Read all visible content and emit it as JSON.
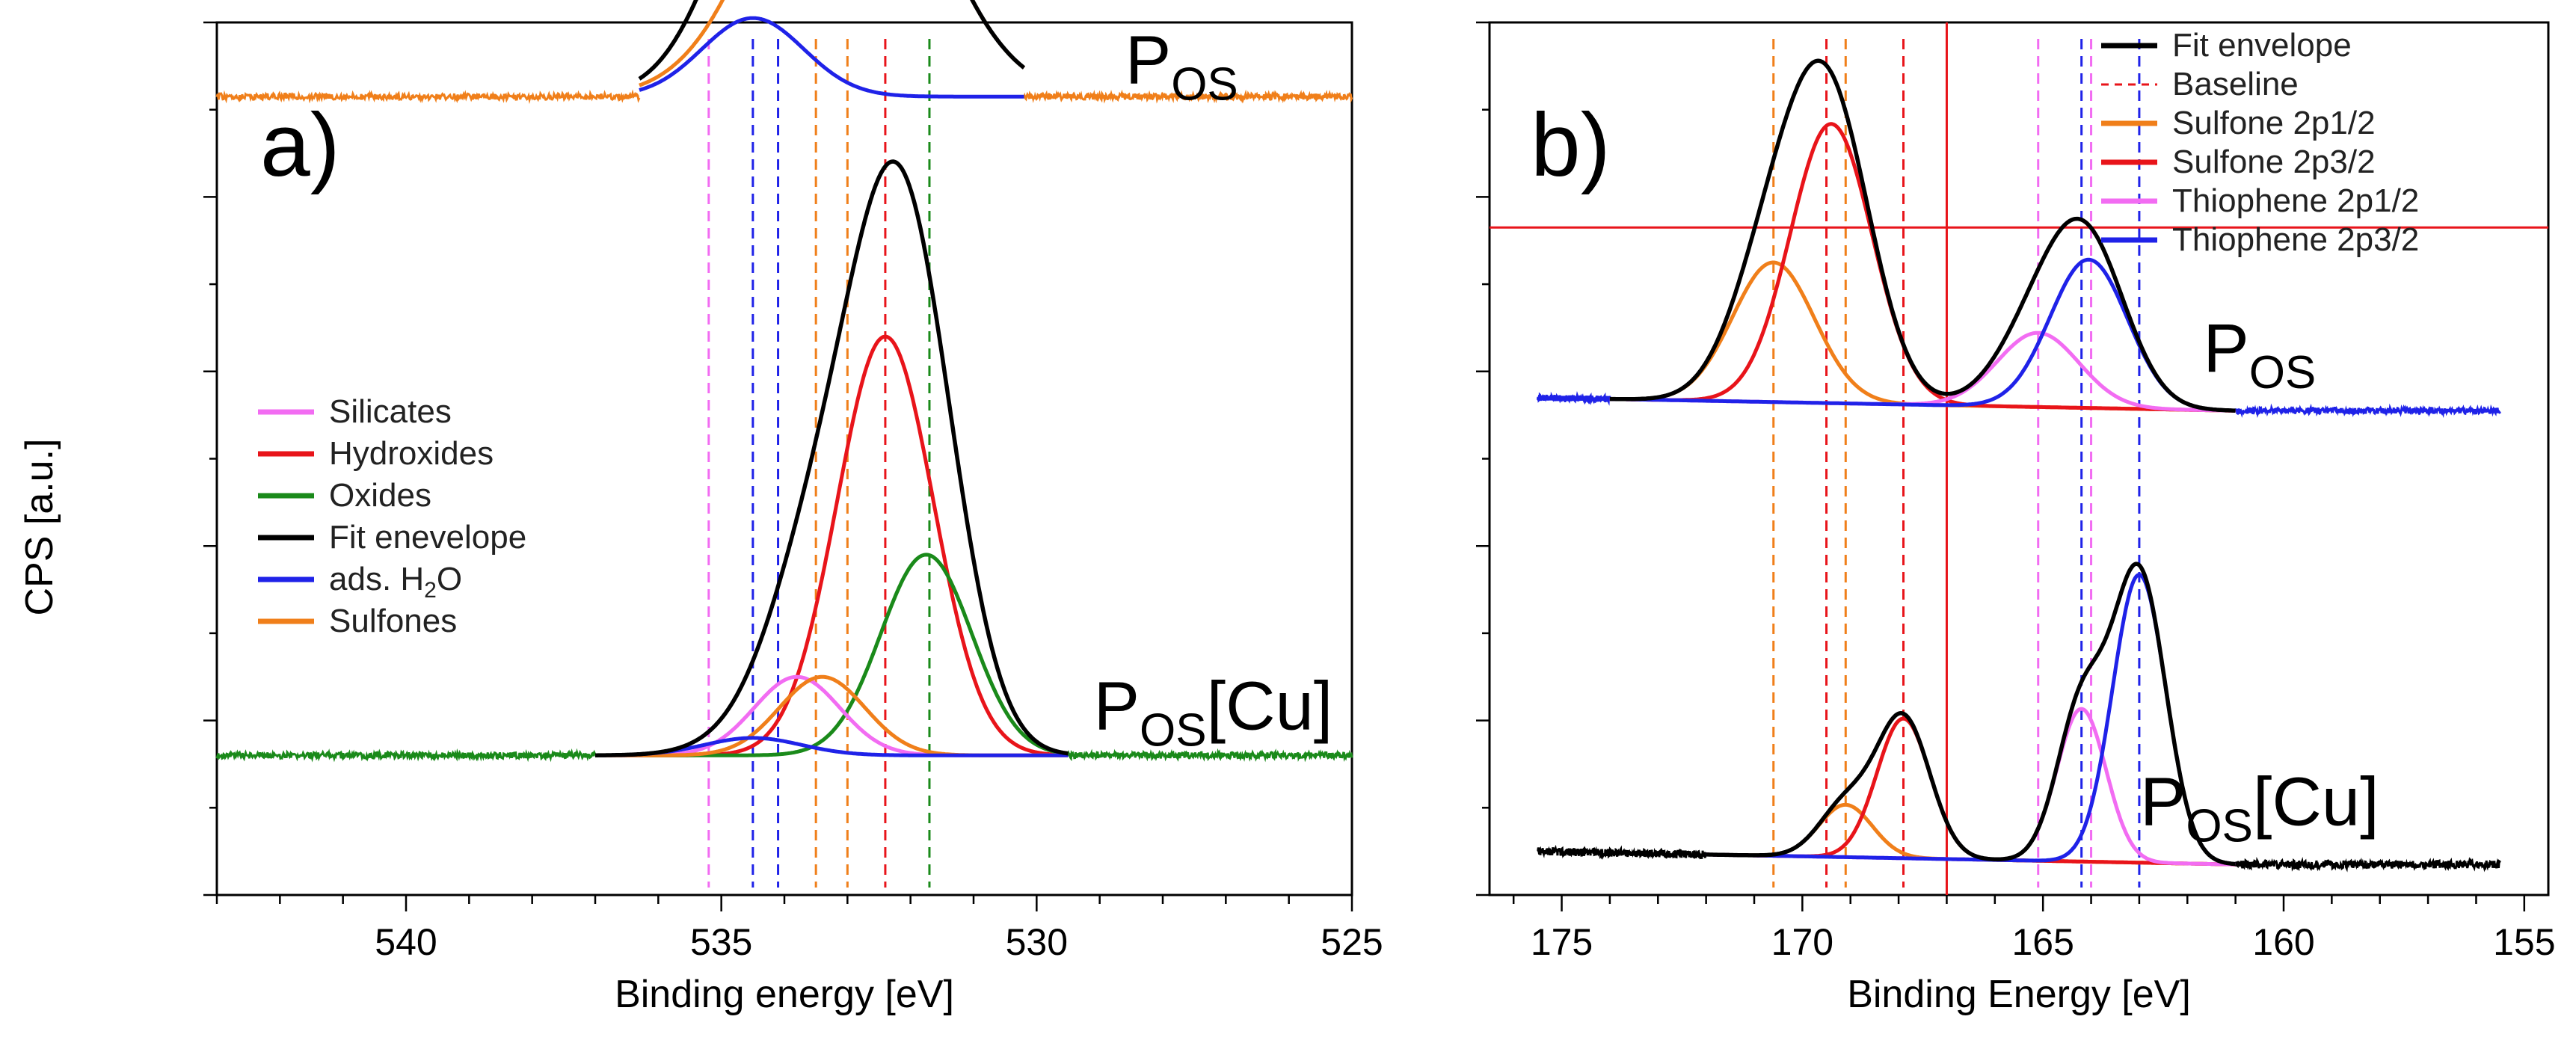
{
  "figure": {
    "ylabel": "CPS [a.u.]",
    "colors": {
      "orange": "#f07f1a",
      "red": "#e8141a",
      "blue": "#1f22e8",
      "magenta": "#f26cf2",
      "green": "#1a8a1a",
      "black": "#000000"
    }
  },
  "chart_data": [
    {
      "type": "line",
      "panel_label": "a)",
      "xlabel": "Binding energy [eV]",
      "ylabel": "CPS [a.u.]",
      "xlim": [
        543,
        525
      ],
      "xticks": [
        540,
        535,
        530,
        525
      ],
      "ylim": [
        0,
        100
      ],
      "legend_position": "center-left",
      "legend": [
        {
          "label": "Silicates",
          "color": "#f26cf2"
        },
        {
          "label": "Hydroxides",
          "color": "#e8141a"
        },
        {
          "label": "Oxides",
          "color": "#1a8a1a"
        },
        {
          "label": "Fit enevelope",
          "color": "#000000"
        },
        {
          "label": "ads. H",
          "sub": "2",
          "label_tail": "O",
          "color": "#1f22e8"
        },
        {
          "label": "Sulfones",
          "color": "#f07f1a"
        }
      ],
      "reference_lines": [
        {
          "x": 535.2,
          "color": "#f26cf2"
        },
        {
          "x": 534.5,
          "color": "#1f22e8"
        },
        {
          "x": 534.1,
          "color": "#1f22e8"
        },
        {
          "x": 533.5,
          "color": "#f07f1a"
        },
        {
          "x": 533.0,
          "color": "#f07f1a"
        },
        {
          "x": 532.4,
          "color": "#e8141a"
        },
        {
          "x": 531.7,
          "color": "#1a8a1a"
        }
      ],
      "spectra": [
        {
          "sample_main": "P",
          "sample_sub": "OS",
          "sample_tail": "",
          "label_x": 527.7,
          "label_y": 93,
          "baseline_color": "#f07f1a",
          "baseline_y": 91.5,
          "noise": 0.35,
          "noise_x": [
            543,
            525
          ],
          "components": [
            {
              "name": "Sulfones",
              "color": "#f07f1a",
              "center": 533.0,
              "fwhm": 3.0,
              "height": 37,
              "x_range": [
                536.3,
                530.2
              ]
            },
            {
              "name": "ads. H2O",
              "color": "#1f22e8",
              "center": 534.5,
              "fwhm": 1.9,
              "height": 9,
              "x_range": [
                536.3,
                530.2
              ]
            }
          ],
          "envelope": {
            "color": "#000000",
            "x_range": [
              536.3,
              530.2
            ]
          }
        },
        {
          "sample_main": "P",
          "sample_sub": "OS",
          "sample_tail": "[Cu]",
          "label_x": 527.2,
          "label_y": 19,
          "baseline_color": "#1a8a1a",
          "baseline_y": 16.0,
          "noise": 0.35,
          "noise_x": [
            543,
            525
          ],
          "components": [
            {
              "name": "Hydroxides",
              "color": "#e8141a",
              "center": 532.4,
              "fwhm": 1.8,
              "height": 48,
              "x_range": [
                537.0,
                529.5
              ]
            },
            {
              "name": "Oxides",
              "color": "#1a8a1a",
              "center": 531.75,
              "fwhm": 1.7,
              "height": 23,
              "x_range": [
                537.0,
                529.5
              ]
            },
            {
              "name": "Silicates",
              "color": "#f26cf2",
              "center": 533.8,
              "fwhm": 1.6,
              "height": 9,
              "x_range": [
                537.0,
                529.5
              ]
            },
            {
              "name": "Sulfones",
              "color": "#f07f1a",
              "center": 533.4,
              "fwhm": 1.6,
              "height": 9,
              "x_range": [
                537.0,
                529.5
              ]
            },
            {
              "name": "ads. H2O",
              "color": "#1f22e8",
              "center": 534.5,
              "fwhm": 1.8,
              "height": 2,
              "x_range": [
                537.0,
                529.5
              ]
            }
          ],
          "envelope": {
            "color": "#000000",
            "x_range": [
              537.0,
              529.5
            ]
          }
        }
      ]
    },
    {
      "type": "line",
      "panel_label": "b)",
      "xlabel": "Binding Energy [eV]",
      "ylabel": "CPS [a.u.]",
      "xlim": [
        176.5,
        154.5
      ],
      "xticks": [
        175,
        170,
        165,
        160,
        155
      ],
      "ylim": [
        0,
        100
      ],
      "legend_position": "top-right",
      "legend": [
        {
          "label": "Fit envelope",
          "color": "#000000",
          "dashed": false
        },
        {
          "label": "Baseline",
          "color": "#e8141a",
          "dashed": true
        },
        {
          "label": "Sulfone 2p1/2",
          "color": "#f07f1a",
          "dashed": false
        },
        {
          "label": "Sulfone 2p3/2",
          "color": "#e8141a",
          "dashed": false
        },
        {
          "label": "Thiophene 2p1/2",
          "color": "#f26cf2",
          "dashed": false
        },
        {
          "label": "Thiophene 2p3/2",
          "color": "#1f22e8",
          "dashed": false
        }
      ],
      "reference_lines": [
        {
          "x": 170.6,
          "color": "#f07f1a"
        },
        {
          "x": 169.5,
          "color": "#e8141a"
        },
        {
          "x": 169.1,
          "color": "#f07f1a"
        },
        {
          "x": 167.9,
          "color": "#e8141a"
        },
        {
          "x": 165.1,
          "color": "#f26cf2"
        },
        {
          "x": 164.2,
          "color": "#1f22e8"
        },
        {
          "x": 164.0,
          "color": "#f26cf2"
        },
        {
          "x": 163.0,
          "color": "#1f22e8"
        }
      ],
      "cursor": {
        "x": 167.0,
        "y": 76.5,
        "color": "#e8141a"
      },
      "spectra": [
        {
          "sample_main": "P",
          "sample_sub": "OS",
          "sample_tail": "",
          "label_x": 160.5,
          "label_y": 60,
          "baseline_color": "#1f22e8",
          "baseline_y": 55.5,
          "noise": 0.35,
          "noise_x": [
            175.5,
            155.5
          ],
          "baseline_slope": [
            175.5,
            57.0,
            161.0,
            55.5
          ],
          "components": [
            {
              "name": "Sulfone 2p1/2",
              "color": "#f07f1a",
              "center": 170.6,
              "fwhm": 2.0,
              "height": 16,
              "x_range": [
                174.0,
                161.0
              ]
            },
            {
              "name": "Sulfone 2p3/2",
              "color": "#e8141a",
              "center": 169.4,
              "fwhm": 2.0,
              "height": 32,
              "x_range": [
                174.0,
                161.0
              ]
            },
            {
              "name": "Thiophene 2p1/2",
              "color": "#f26cf2",
              "center": 165.1,
              "fwhm": 2.0,
              "height": 8.5,
              "x_range": [
                174.0,
                161.0
              ]
            },
            {
              "name": "Thiophene 2p3/2",
              "color": "#1f22e8",
              "center": 164.05,
              "fwhm": 1.9,
              "height": 17,
              "x_range": [
                174.0,
                161.0
              ]
            }
          ],
          "envelope": {
            "color": "#000000",
            "x_range": [
              174.0,
              161.0
            ]
          }
        },
        {
          "sample_main": "P",
          "sample_sub": "OS",
          "sample_tail": "[Cu]",
          "label_x": 160.5,
          "label_y": 8,
          "baseline_color": "#000000",
          "baseline_y": 3.5,
          "noise": 0.45,
          "noise_x": [
            175.5,
            155.5
          ],
          "baseline_slope": [
            175.5,
            5.0,
            161.0,
            3.5
          ],
          "components": [
            {
              "name": "Sulfone 2p1/2",
              "color": "#f07f1a",
              "center": 169.1,
              "fwhm": 1.3,
              "height": 6,
              "x_range": [
                172.0,
                161.0
              ]
            },
            {
              "name": "Sulfone 2p3/2",
              "color": "#e8141a",
              "center": 167.9,
              "fwhm": 1.3,
              "height": 16,
              "x_range": [
                172.0,
                161.0
              ]
            },
            {
              "name": "Thiophene 2p1/2",
              "color": "#f26cf2",
              "center": 164.2,
              "fwhm": 1.2,
              "height": 17.5,
              "x_range": [
                172.0,
                161.0
              ]
            },
            {
              "name": "Thiophene 2p3/2",
              "color": "#1f22e8",
              "center": 163.0,
              "fwhm": 1.3,
              "height": 33,
              "x_range": [
                172.0,
                161.0
              ]
            }
          ],
          "envelope": {
            "color": "#000000",
            "x_range": [
              172.0,
              161.0
            ]
          }
        }
      ]
    }
  ]
}
